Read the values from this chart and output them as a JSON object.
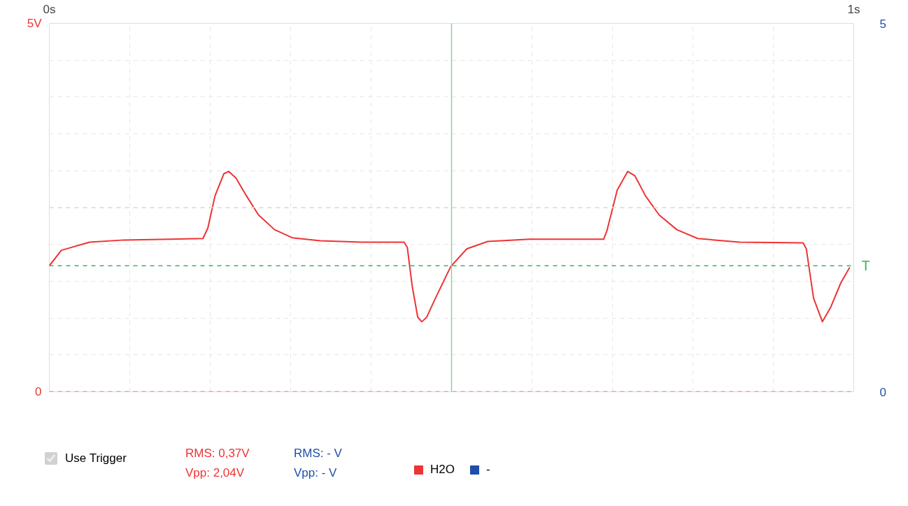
{
  "chart_data": {
    "type": "line",
    "x": [
      0,
      0.015,
      0.05,
      0.093,
      0.191,
      0.197,
      0.206,
      0.217,
      0.223,
      0.232,
      0.245,
      0.26,
      0.28,
      0.302,
      0.337,
      0.389,
      0.441,
      0.445,
      0.451,
      0.458,
      0.463,
      0.469,
      0.48,
      0.499,
      0.519,
      0.545,
      0.597,
      0.689,
      0.693,
      0.706,
      0.719,
      0.728,
      0.741,
      0.758,
      0.78,
      0.806,
      0.858,
      0.937,
      0.941,
      0.95,
      0.961,
      0.971,
      0.984,
      0.995
    ],
    "series": [
      {
        "name": "H2O",
        "color": "#ee3333",
        "values": [
          1.71,
          1.92,
          2.03,
          2.06,
          2.08,
          2.22,
          2.66,
          2.96,
          2.99,
          2.9,
          2.66,
          2.4,
          2.2,
          2.09,
          2.05,
          2.03,
          2.03,
          1.96,
          1.44,
          1.01,
          0.95,
          1.01,
          1.27,
          1.7,
          1.94,
          2.04,
          2.07,
          2.07,
          2.18,
          2.74,
          2.99,
          2.93,
          2.66,
          2.4,
          2.2,
          2.08,
          2.03,
          2.02,
          1.94,
          1.27,
          0.95,
          1.14,
          1.48,
          1.69
        ]
      },
      {
        "name": "-",
        "color": "#1f4faa",
        "axis": "y2",
        "values": [
          null,
          null,
          null,
          null,
          null,
          null,
          null,
          null,
          null,
          null,
          null,
          null,
          null,
          null,
          null,
          null,
          null,
          null,
          null,
          null,
          null,
          null,
          null,
          null,
          null,
          null,
          null,
          null,
          null,
          null,
          null,
          null,
          null,
          null,
          null,
          null,
          null,
          null,
          null,
          null,
          null,
          null,
          null,
          null
        ]
      }
    ],
    "xlim": [
      0,
      1
    ],
    "xticks": [
      {
        "value": 0,
        "label": "0s"
      },
      {
        "value": 0.1,
        "label": null
      },
      {
        "value": 0.2,
        "label": null
      },
      {
        "value": 0.3,
        "label": null
      },
      {
        "value": 0.4,
        "label": null
      },
      {
        "value": 0.5,
        "label": null
      },
      {
        "value": 0.6,
        "label": null
      },
      {
        "value": 0.7,
        "label": null
      },
      {
        "value": 0.8,
        "label": null
      },
      {
        "value": 0.9,
        "label": null
      },
      {
        "value": 1,
        "label": "1s"
      }
    ],
    "ylim": [
      0,
      5
    ],
    "yticks": [
      {
        "value": 0,
        "label": "0"
      },
      {
        "value": 0.5,
        "label": null
      },
      {
        "value": 1,
        "label": null
      },
      {
        "value": 1.5,
        "label": null
      },
      {
        "value": 2,
        "label": null
      },
      {
        "value": 2.5,
        "label": null
      },
      {
        "value": 3,
        "label": null
      },
      {
        "value": 3.5,
        "label": null
      },
      {
        "value": 4,
        "label": null
      },
      {
        "value": 4.5,
        "label": null
      },
      {
        "value": 5,
        "label": "5V"
      }
    ],
    "y2lim": [
      0,
      5
    ],
    "y2ticks": [
      0,
      5
    ],
    "grid": true,
    "legend": "bottom right",
    "line_style": "solid",
    "ref_lines": [
      {
        "axis": "y",
        "value": 0,
        "color": "#f06060",
        "line_style": "dashed"
      },
      {
        "axis": "y",
        "value": 2.5,
        "color": "#dddddd",
        "line_style": "dashed"
      },
      {
        "axis": "x",
        "value": 0.5,
        "color": "#8fd19e",
        "line_style": "solid"
      },
      {
        "axis": "y",
        "value": 1.71,
        "label": "T",
        "color": "#3cb55a",
        "line_style": "dashed"
      }
    ],
    "annotations": [
      "Use Trigger",
      "RMS: 0,37V",
      "Vpp: 2,04V",
      "RMS: - V",
      "Vpp: - V"
    ]
  }
}
